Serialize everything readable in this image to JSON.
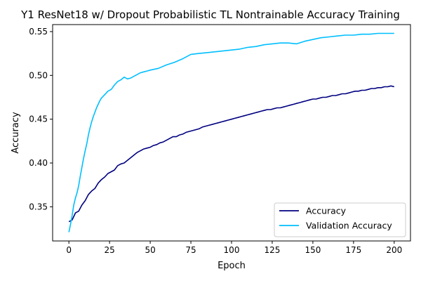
{
  "chart_data": {
    "type": "line",
    "title": "Y1 ResNet18 w/ Dropout Probabilistic TL Nontrainable Accuracy Training",
    "xlabel": "Epoch",
    "ylabel": "Accuracy",
    "xlim": [
      -10,
      210
    ],
    "ylim": [
      0.311,
      0.558
    ],
    "xticks": [
      0,
      25,
      50,
      75,
      100,
      125,
      150,
      175,
      200
    ],
    "xtick_labels": [
      "0",
      "25",
      "50",
      "75",
      "100",
      "125",
      "150",
      "175",
      "200"
    ],
    "yticks": [
      0.35,
      0.4,
      0.45,
      0.5,
      0.55
    ],
    "ytick_labels": [
      "0.35",
      "0.40",
      "0.45",
      "0.50",
      "0.55"
    ],
    "grid": false,
    "legend_position": "lower-right",
    "series": [
      {
        "name": "Accuracy",
        "color": "#000080",
        "points": [
          [
            0,
            0.333
          ],
          [
            2,
            0.335
          ],
          [
            4,
            0.343
          ],
          [
            6,
            0.345
          ],
          [
            8,
            0.352
          ],
          [
            10,
            0.357
          ],
          [
            12,
            0.364
          ],
          [
            14,
            0.368
          ],
          [
            16,
            0.371
          ],
          [
            18,
            0.377
          ],
          [
            20,
            0.381
          ],
          [
            22,
            0.384
          ],
          [
            24,
            0.388
          ],
          [
            26,
            0.39
          ],
          [
            28,
            0.392
          ],
          [
            30,
            0.397
          ],
          [
            32,
            0.399
          ],
          [
            34,
            0.4
          ],
          [
            36,
            0.403
          ],
          [
            38,
            0.406
          ],
          [
            40,
            0.409
          ],
          [
            42,
            0.412
          ],
          [
            44,
            0.414
          ],
          [
            46,
            0.416
          ],
          [
            48,
            0.417
          ],
          [
            50,
            0.418
          ],
          [
            52,
            0.42
          ],
          [
            54,
            0.421
          ],
          [
            56,
            0.423
          ],
          [
            58,
            0.424
          ],
          [
            60,
            0.426
          ],
          [
            62,
            0.428
          ],
          [
            64,
            0.43
          ],
          [
            66,
            0.43
          ],
          [
            68,
            0.432
          ],
          [
            70,
            0.433
          ],
          [
            72,
            0.435
          ],
          [
            74,
            0.436
          ],
          [
            76,
            0.437
          ],
          [
            78,
            0.438
          ],
          [
            80,
            0.439
          ],
          [
            82,
            0.441
          ],
          [
            84,
            0.442
          ],
          [
            86,
            0.443
          ],
          [
            88,
            0.444
          ],
          [
            90,
            0.445
          ],
          [
            92,
            0.446
          ],
          [
            94,
            0.447
          ],
          [
            96,
            0.448
          ],
          [
            98,
            0.449
          ],
          [
            100,
            0.45
          ],
          [
            102,
            0.451
          ],
          [
            104,
            0.452
          ],
          [
            106,
            0.453
          ],
          [
            108,
            0.454
          ],
          [
            110,
            0.455
          ],
          [
            112,
            0.456
          ],
          [
            114,
            0.457
          ],
          [
            116,
            0.458
          ],
          [
            118,
            0.459
          ],
          [
            120,
            0.46
          ],
          [
            122,
            0.461
          ],
          [
            124,
            0.461
          ],
          [
            126,
            0.462
          ],
          [
            128,
            0.463
          ],
          [
            130,
            0.463
          ],
          [
            132,
            0.464
          ],
          [
            134,
            0.465
          ],
          [
            136,
            0.466
          ],
          [
            138,
            0.467
          ],
          [
            140,
            0.468
          ],
          [
            142,
            0.469
          ],
          [
            144,
            0.47
          ],
          [
            146,
            0.471
          ],
          [
            148,
            0.472
          ],
          [
            150,
            0.473
          ],
          [
            152,
            0.473
          ],
          [
            154,
            0.474
          ],
          [
            156,
            0.475
          ],
          [
            158,
            0.475
          ],
          [
            160,
            0.476
          ],
          [
            162,
            0.477
          ],
          [
            164,
            0.477
          ],
          [
            166,
            0.478
          ],
          [
            168,
            0.479
          ],
          [
            170,
            0.479
          ],
          [
            172,
            0.48
          ],
          [
            174,
            0.481
          ],
          [
            176,
            0.482
          ],
          [
            178,
            0.482
          ],
          [
            180,
            0.483
          ],
          [
            182,
            0.483
          ],
          [
            184,
            0.484
          ],
          [
            186,
            0.485
          ],
          [
            188,
            0.485
          ],
          [
            190,
            0.486
          ],
          [
            192,
            0.486
          ],
          [
            194,
            0.487
          ],
          [
            196,
            0.487
          ],
          [
            198,
            0.488
          ],
          [
            200,
            0.487
          ]
        ]
      },
      {
        "name": "Validation Accuracy",
        "color": "#00bfff",
        "points": [
          [
            0,
            0.321
          ],
          [
            1,
            0.33
          ],
          [
            2,
            0.34
          ],
          [
            3,
            0.352
          ],
          [
            4,
            0.36
          ],
          [
            5,
            0.366
          ],
          [
            6,
            0.374
          ],
          [
            7,
            0.385
          ],
          [
            8,
            0.395
          ],
          [
            9,
            0.405
          ],
          [
            10,
            0.414
          ],
          [
            11,
            0.422
          ],
          [
            12,
            0.432
          ],
          [
            13,
            0.44
          ],
          [
            14,
            0.447
          ],
          [
            15,
            0.453
          ],
          [
            16,
            0.458
          ],
          [
            17,
            0.463
          ],
          [
            18,
            0.467
          ],
          [
            19,
            0.471
          ],
          [
            20,
            0.474
          ],
          [
            22,
            0.478
          ],
          [
            24,
            0.482
          ],
          [
            26,
            0.484
          ],
          [
            28,
            0.489
          ],
          [
            30,
            0.493
          ],
          [
            32,
            0.495
          ],
          [
            34,
            0.498
          ],
          [
            36,
            0.496
          ],
          [
            38,
            0.497
          ],
          [
            40,
            0.499
          ],
          [
            42,
            0.501
          ],
          [
            44,
            0.503
          ],
          [
            46,
            0.504
          ],
          [
            48,
            0.505
          ],
          [
            50,
            0.506
          ],
          [
            55,
            0.508
          ],
          [
            60,
            0.512
          ],
          [
            65,
            0.515
          ],
          [
            70,
            0.519
          ],
          [
            75,
            0.524
          ],
          [
            80,
            0.525
          ],
          [
            85,
            0.526
          ],
          [
            90,
            0.527
          ],
          [
            95,
            0.528
          ],
          [
            100,
            0.529
          ],
          [
            105,
            0.53
          ],
          [
            110,
            0.532
          ],
          [
            115,
            0.533
          ],
          [
            120,
            0.535
          ],
          [
            125,
            0.536
          ],
          [
            130,
            0.537
          ],
          [
            135,
            0.537
          ],
          [
            140,
            0.536
          ],
          [
            145,
            0.539
          ],
          [
            150,
            0.541
          ],
          [
            155,
            0.543
          ],
          [
            160,
            0.544
          ],
          [
            165,
            0.545
          ],
          [
            170,
            0.546
          ],
          [
            175,
            0.546
          ],
          [
            180,
            0.547
          ],
          [
            185,
            0.547
          ],
          [
            190,
            0.548
          ],
          [
            195,
            0.548
          ],
          [
            200,
            0.548
          ]
        ]
      }
    ]
  }
}
